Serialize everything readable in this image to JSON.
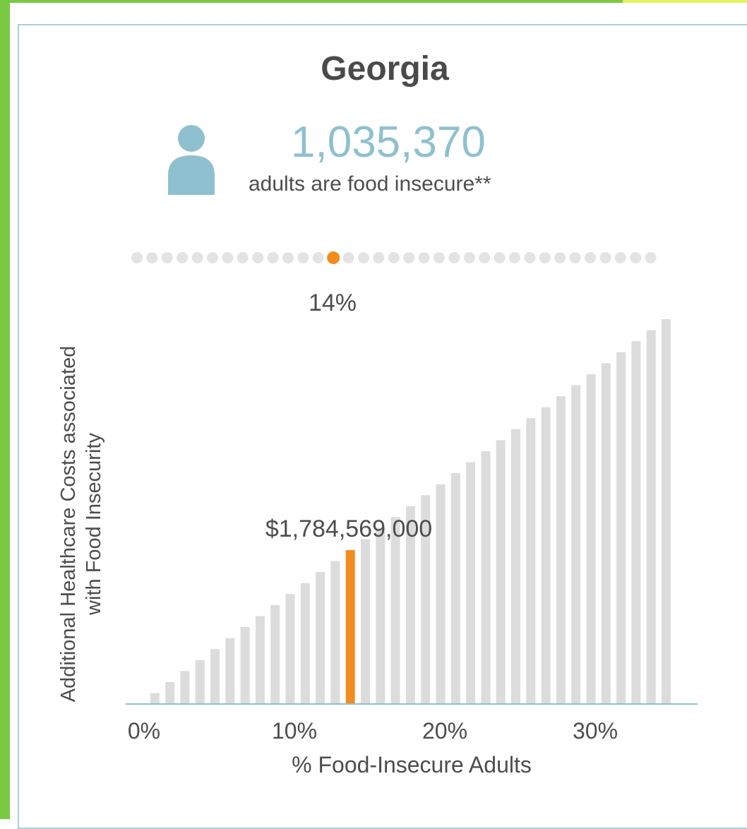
{
  "header": {
    "title": "Georgia",
    "count": "1,035,370",
    "count_caption": "adults are food insecure**",
    "icon": "person-icon"
  },
  "colors": {
    "accent": "#8fc0cf",
    "highlight": "#f28c1f",
    "bar": "#dcdcdc",
    "axis": "#8fc0cf",
    "border": "#a9cfd4"
  },
  "slider": {
    "dot_count": 35,
    "selected_index": 13,
    "label": "14%"
  },
  "chart_data": {
    "type": "bar",
    "title": "",
    "xlabel": "% Food-Insecure Adults",
    "ylabel": "Additional Healthcare Costs associated with Food Insecurity",
    "x_ticks": [
      "0%",
      "10%",
      "20%",
      "30%"
    ],
    "x_tick_values": [
      0,
      10,
      20,
      30
    ],
    "xlim": [
      0,
      36
    ],
    "x": [
      1,
      2,
      3,
      4,
      5,
      6,
      7,
      8,
      9,
      10,
      11,
      12,
      13,
      14,
      15,
      16,
      17,
      18,
      19,
      20,
      21,
      22,
      23,
      24,
      25,
      26,
      27,
      28,
      29,
      30,
      31,
      32,
      33,
      34,
      35
    ],
    "values": [
      127000000,
      255000000,
      382000000,
      510000000,
      637000000,
      765000000,
      892000000,
      1020000000,
      1147000000,
      1275000000,
      1402000000,
      1530000000,
      1657000000,
      1784569000,
      1912000000,
      2039000000,
      2167000000,
      2294000000,
      2422000000,
      2549000000,
      2677000000,
      2804000000,
      2932000000,
      3059000000,
      3187000000,
      3314000000,
      3442000000,
      3569000000,
      3697000000,
      3824000000,
      3952000000,
      4079000000,
      4207000000,
      4334000000,
      4462000000
    ],
    "ylim": [
      0,
      4462000000
    ],
    "highlight_x": 14,
    "highlight_label": "$1,784,569,000",
    "grid": false
  }
}
